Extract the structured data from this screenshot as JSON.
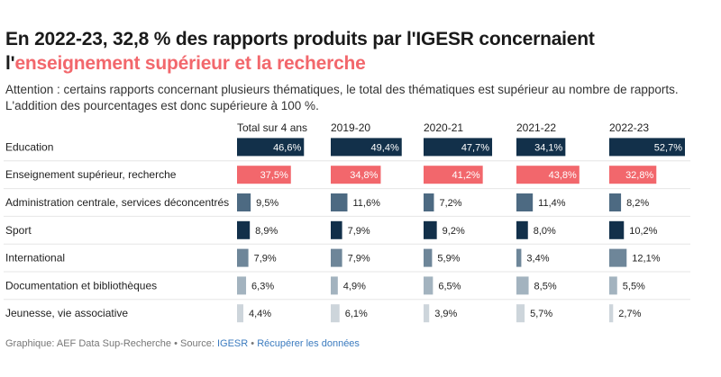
{
  "header": {
    "title_part1": "En 2022-23, 32,8 % des rapports produits par l'IGESR concernaient l'",
    "title_highlight": "enseignement supérieur et la recherche",
    "note": "Attention : certains rapports concernant plusieurs thématiques, le total des thématiques est supérieur au nombre de rapports. L'addition des pourcentages est donc supérieure à 100 %."
  },
  "footer": {
    "source_prefix": "Graphique: AEF Data Sup-Recherche • Source: ",
    "source_link": "IGESR",
    "separator": " • ",
    "download_link": "Récupérer les données"
  },
  "colors": {
    "highlight": "#f2676c",
    "rows": [
      "#12304a",
      "#f2676c",
      "#4d6a82",
      "#12304a",
      "#6e8699",
      "#a3b3bf",
      "#cdd5db"
    ]
  },
  "chart_data": {
    "type": "table",
    "unit": "%",
    "scale_max": 52.7,
    "columns": [
      "Total sur 4 ans",
      "2019-20",
      "2020-21",
      "2021-22",
      "2022-23"
    ],
    "rows": [
      {
        "label": "Education",
        "values": [
          46.6,
          49.4,
          47.7,
          34.1,
          52.7
        ],
        "labels": [
          "46,6%",
          "49,4%",
          "47,7%",
          "34,1%",
          "52,7%"
        ]
      },
      {
        "label": "Enseignement supérieur, recherche",
        "values": [
          37.5,
          34.8,
          41.2,
          43.8,
          32.8
        ],
        "labels": [
          "37,5%",
          "34,8%",
          "41,2%",
          "43,8%",
          "32,8%"
        ]
      },
      {
        "label": "Administration centrale, services déconcentrés",
        "values": [
          9.5,
          11.6,
          7.2,
          11.4,
          8.2
        ],
        "labels": [
          "9,5%",
          "11,6%",
          "7,2%",
          "11,4%",
          "8,2%"
        ]
      },
      {
        "label": "Sport",
        "values": [
          8.9,
          7.9,
          9.2,
          8.0,
          10.2
        ],
        "labels": [
          "8,9%",
          "7,9%",
          "9,2%",
          "8,0%",
          "10,2%"
        ]
      },
      {
        "label": "International",
        "values": [
          7.9,
          7.9,
          5.9,
          3.4,
          12.1
        ],
        "labels": [
          "7,9%",
          "7,9%",
          "5,9%",
          "3,4%",
          "12,1%"
        ]
      },
      {
        "label": "Documentation et bibliothèques",
        "values": [
          6.3,
          4.9,
          6.5,
          8.5,
          5.5
        ],
        "labels": [
          "6,3%",
          "4,9%",
          "6,5%",
          "8,5%",
          "5,5%"
        ]
      },
      {
        "label": "Jeunesse, vie associative",
        "values": [
          4.4,
          6.1,
          3.9,
          5.7,
          2.7
        ],
        "labels": [
          "4,4%",
          "6,1%",
          "3,9%",
          "5,7%",
          "2,7%"
        ]
      }
    ]
  }
}
